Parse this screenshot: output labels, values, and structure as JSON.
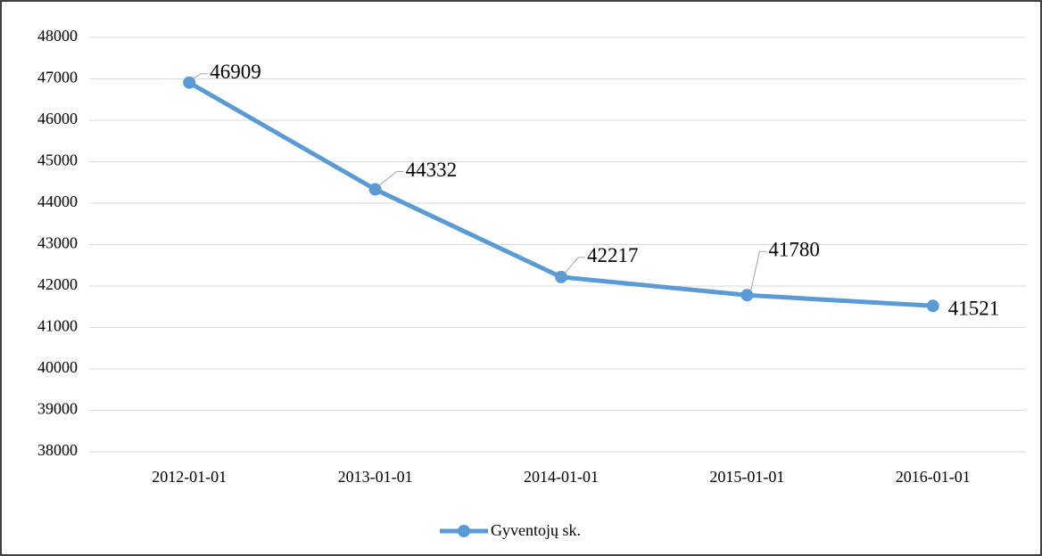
{
  "chart_data": {
    "type": "line",
    "categories": [
      "2012-01-01",
      "2013-01-01",
      "2014-01-01",
      "2015-01-01",
      "2016-01-01"
    ],
    "series": [
      {
        "name": "Gyventojų sk.",
        "color": "#5b9bd5",
        "values": [
          46909,
          44332,
          42217,
          41780,
          41521
        ]
      }
    ],
    "ylim": [
      38000,
      48000
    ],
    "yticks": [
      38000,
      39000,
      40000,
      41000,
      42000,
      43000,
      44000,
      45000,
      46000,
      47000,
      48000
    ],
    "grid": true,
    "legend": "bottom"
  }
}
